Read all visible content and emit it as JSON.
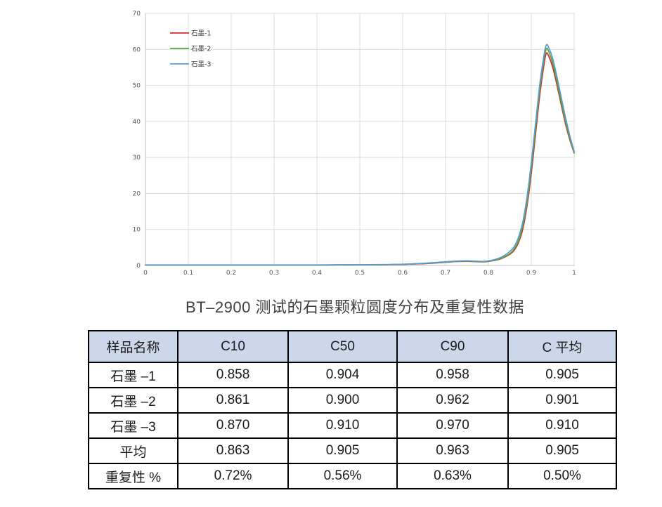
{
  "title": "BT–2900 测试的石墨颗粒圆度分布及重复性数据",
  "chart_data": {
    "type": "line",
    "title": "",
    "xlabel": "",
    "ylabel": "",
    "xlim": [
      0,
      1
    ],
    "ylim": [
      0,
      70
    ],
    "x_ticks": [
      "0",
      "0.1",
      "0.2",
      "0.3",
      "0.4",
      "0.5",
      "0.6",
      "0.7",
      "0.8",
      "0.9",
      "1"
    ],
    "y_ticks": [
      "0",
      "10",
      "20",
      "30",
      "40",
      "50",
      "60",
      "70"
    ],
    "grid": true,
    "legend_position": "top-left-inside",
    "x": [
      0,
      0.05,
      0.1,
      0.15,
      0.2,
      0.25,
      0.3,
      0.35,
      0.4,
      0.45,
      0.5,
      0.55,
      0.6,
      0.64,
      0.68,
      0.71,
      0.73,
      0.75,
      0.77,
      0.79,
      0.81,
      0.83,
      0.85,
      0.86,
      0.87,
      0.88,
      0.89,
      0.9,
      0.91,
      0.92,
      0.93,
      0.935,
      0.94,
      0.95,
      0.96,
      0.97,
      0.98,
      0.99,
      1
    ],
    "series": [
      {
        "name": "石墨-1",
        "color": "#d92b2b",
        "values": [
          0.1,
          0.1,
          0.1,
          0.1,
          0.1,
          0.1,
          0.1,
          0.1,
          0.1,
          0.15,
          0.15,
          0.2,
          0.3,
          0.45,
          0.7,
          0.95,
          1.1,
          1.15,
          1.05,
          1.0,
          1.3,
          1.9,
          3.1,
          4.2,
          6.3,
          10.0,
          16.5,
          25.5,
          36.5,
          47.5,
          56.0,
          58.9,
          58.3,
          55.0,
          50.0,
          44.5,
          39.2,
          34.8,
          31.2
        ]
      },
      {
        "name": "石墨-2",
        "color": "#57a23b",
        "values": [
          0.1,
          0.1,
          0.1,
          0.1,
          0.1,
          0.1,
          0.1,
          0.1,
          0.1,
          0.15,
          0.15,
          0.2,
          0.3,
          0.5,
          0.75,
          1.0,
          1.15,
          1.2,
          1.1,
          1.05,
          1.35,
          2.0,
          3.3,
          4.5,
          6.8,
          10.8,
          17.5,
          27.0,
          38.0,
          49.0,
          57.3,
          60.2,
          59.6,
          56.2,
          51.0,
          45.3,
          39.8,
          35.2,
          31.3
        ]
      },
      {
        "name": "石墨-3",
        "color": "#5b9bd5",
        "values": [
          0.15,
          0.15,
          0.15,
          0.15,
          0.15,
          0.15,
          0.15,
          0.15,
          0.15,
          0.2,
          0.2,
          0.25,
          0.35,
          0.55,
          0.85,
          1.1,
          1.25,
          1.3,
          1.2,
          1.15,
          1.5,
          2.3,
          3.9,
          5.2,
          7.8,
          12.0,
          19.0,
          28.5,
          39.5,
          50.5,
          58.6,
          61.2,
          60.7,
          57.4,
          52.3,
          46.6,
          41.0,
          36.0,
          31.7
        ]
      }
    ]
  },
  "table": {
    "header_bg": "#ccd7ec",
    "header": [
      "样品名称",
      "C10",
      "C50",
      "C90",
      "C 平均"
    ],
    "rows": [
      [
        "石墨 –1",
        "0.858",
        "0.904",
        "0.958",
        "0.905"
      ],
      [
        "石墨 –2",
        "0.861",
        "0.900",
        "0.962",
        "0.901"
      ],
      [
        "石墨 –3",
        "0.870",
        "0.910",
        "0.970",
        "0.910"
      ],
      [
        "平均",
        "0.863",
        "0.905",
        "0.963",
        "0.905"
      ],
      [
        "重复性 %",
        "0.72%",
        "0.56%",
        "0.63%",
        "0.50%"
      ]
    ]
  }
}
